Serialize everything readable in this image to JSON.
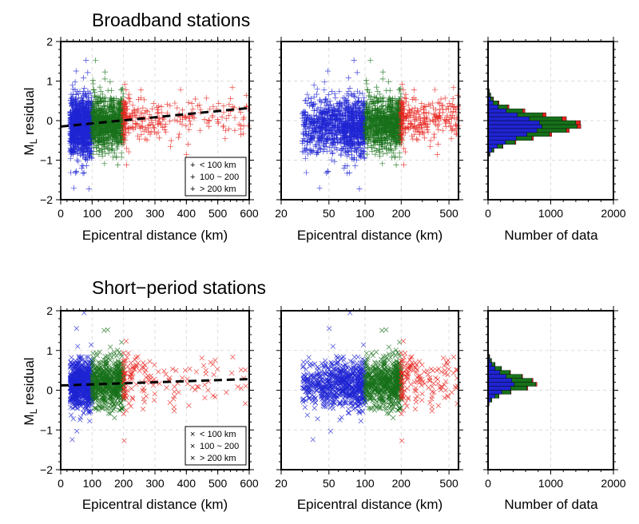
{
  "panel_titles": {
    "broadband": "Broadband stations",
    "short_period": "Short−period stations"
  },
  "y_axis_label": {
    "main": "M",
    "sub": "L",
    "rest": " residual"
  },
  "x_labels": {
    "distance": "Epicentral distance (km)",
    "count": "Number of data"
  },
  "colors": {
    "near": "#1f24d2",
    "mid": "#17711a",
    "far": "#e8251f"
  },
  "legend": {
    "near": "< 100 km",
    "mid": "100 ~ 200",
    "far": "> 200 km"
  },
  "chart_data": [
    {
      "id": "broadband-linear",
      "type": "scatter",
      "marker": "plus",
      "xlabel": "Epicentral distance (km)",
      "ylabel": "ML residual",
      "xlim": [
        0,
        600
      ],
      "ylim": [
        -2,
        2
      ],
      "xticks": [
        "0",
        "100",
        "200",
        "300",
        "400",
        "500",
        "600"
      ],
      "yticks": [
        "-2",
        "-1",
        "0",
        "1",
        "2"
      ],
      "trend_line": {
        "x": [
          0,
          600
        ],
        "y": [
          -0.15,
          0.32
        ]
      },
      "series": [
        {
          "name": "< 100 km",
          "x_range": [
            30,
            100
          ],
          "mean": -0.15,
          "spread": 0.35
        },
        {
          "name": "100 ~ 200",
          "x_range": [
            100,
            200
          ],
          "mean": -0.05,
          "spread": 0.33
        },
        {
          "name": "> 200 km",
          "x_range": [
            200,
            600
          ],
          "mean": 0.05,
          "spread": 0.3
        }
      ]
    },
    {
      "id": "broadband-log",
      "type": "scatter",
      "marker": "plus",
      "xscale": "log",
      "xlabel": "Epicentral distance (km)",
      "xlim": [
        20,
        600
      ],
      "ylim": [
        -2,
        2
      ],
      "xticks": [
        "20",
        "50",
        "100",
        "200",
        "500"
      ]
    },
    {
      "id": "broadband-hist",
      "type": "bar",
      "orientation": "horizontal",
      "stacked": true,
      "xlabel": "Number of data",
      "xlim": [
        0,
        2000
      ],
      "ylim": [
        -2,
        2
      ],
      "xticks": [
        "0",
        "1000",
        "2000"
      ],
      "bin_centers": [
        -0.85,
        -0.75,
        -0.65,
        -0.55,
        -0.45,
        -0.35,
        -0.25,
        -0.15,
        -0.05,
        0.05,
        0.15,
        0.25,
        0.35,
        0.45,
        0.55,
        0.65,
        0.75,
        0.85
      ],
      "series": [
        {
          "name": "< 100 km",
          "values": [
            20,
            60,
            150,
            280,
            450,
            620,
            780,
            860,
            820,
            660,
            470,
            290,
            160,
            80,
            40,
            20,
            10,
            5
          ]
        },
        {
          "name": "100 ~ 200",
          "values": [
            10,
            30,
            80,
            150,
            250,
            360,
            470,
            560,
            580,
            520,
            400,
            260,
            150,
            80,
            40,
            20,
            10,
            5
          ]
        },
        {
          "name": "> 200 km",
          "values": [
            2,
            5,
            10,
            15,
            25,
            35,
            45,
            60,
            75,
            70,
            55,
            40,
            25,
            15,
            8,
            4,
            2,
            1
          ]
        }
      ]
    },
    {
      "id": "short-period-linear",
      "type": "scatter",
      "marker": "cross",
      "xlabel": "Epicentral distance (km)",
      "ylabel": "ML residual",
      "xlim": [
        0,
        600
      ],
      "ylim": [
        -2,
        2
      ],
      "xticks": [
        "0",
        "100",
        "200",
        "300",
        "400",
        "500",
        "600"
      ],
      "yticks": [
        "-2",
        "-1",
        "0",
        "1",
        "2"
      ],
      "trend_line": {
        "x": [
          0,
          600
        ],
        "y": [
          0.12,
          0.28
        ]
      },
      "series": [
        {
          "name": "< 100 km",
          "x_range": [
            30,
            100
          ],
          "mean": 0.15,
          "spread": 0.3
        },
        {
          "name": "100 ~ 200",
          "x_range": [
            100,
            200
          ],
          "mean": 0.18,
          "spread": 0.3
        },
        {
          "name": "> 200 km",
          "x_range": [
            200,
            600
          ],
          "mean": 0.3,
          "spread": 0.35
        }
      ]
    },
    {
      "id": "short-period-log",
      "type": "scatter",
      "marker": "cross",
      "xscale": "log",
      "xlabel": "Epicentral distance (km)",
      "xlim": [
        20,
        600
      ],
      "ylim": [
        -2,
        2
      ],
      "xticks": [
        "20",
        "50",
        "100",
        "200",
        "500"
      ]
    },
    {
      "id": "short-period-hist",
      "type": "bar",
      "orientation": "horizontal",
      "stacked": true,
      "xlabel": "Number of data",
      "xlim": [
        0,
        2000
      ],
      "ylim": [
        -2,
        2
      ],
      "xticks": [
        "0",
        "1000",
        "2000"
      ],
      "bin_centers": [
        -0.35,
        -0.25,
        -0.15,
        -0.05,
        0.05,
        0.15,
        0.25,
        0.35,
        0.45,
        0.55,
        0.65,
        0.75,
        0.85,
        0.95
      ],
      "series": [
        {
          "name": "< 100 km",
          "values": [
            10,
            40,
            110,
            220,
            360,
            420,
            380,
            290,
            190,
            110,
            60,
            30,
            15,
            5
          ]
        },
        {
          "name": "100 ~ 200",
          "values": [
            5,
            20,
            60,
            140,
            260,
            340,
            320,
            250,
            160,
            100,
            50,
            25,
            10,
            5
          ]
        },
        {
          "name": "> 200 km",
          "values": [
            1,
            2,
            4,
            8,
            15,
            20,
            18,
            12,
            8,
            5,
            3,
            2,
            1,
            0
          ]
        }
      ]
    }
  ]
}
